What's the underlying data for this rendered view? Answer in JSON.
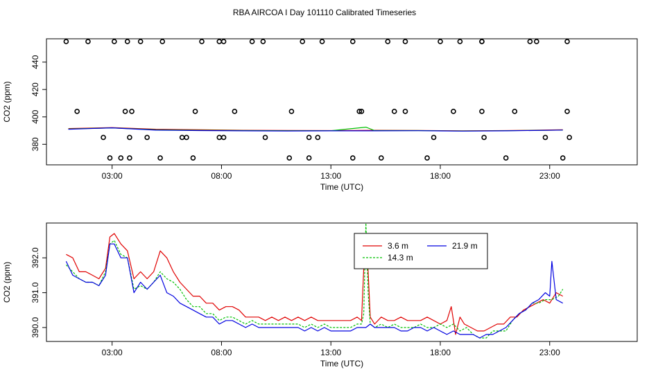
{
  "title": "RBA AIRCOA I  Day 101110  Calibrated Timeseries",
  "colors": {
    "red": "#e00000",
    "green": "#00c000",
    "blue": "#0000e0",
    "black": "#000000"
  },
  "chart_data": [
    {
      "type": "scatter",
      "xlabel": "Time (UTC)",
      "ylabel": "CO2 (ppm)",
      "x_unit": "hours UTC",
      "xlim": [
        0,
        27
      ],
      "ylim": [
        365,
        457
      ],
      "x_ticks": [
        {
          "v": 3,
          "label": "03:00"
        },
        {
          "v": 8,
          "label": "08:00"
        },
        {
          "v": 13,
          "label": "13:00"
        },
        {
          "v": 18,
          "label": "18:00"
        },
        {
          "v": 23,
          "label": "23:00"
        }
      ],
      "y_ticks": [
        {
          "v": 380,
          "label": "380"
        },
        {
          "v": 400,
          "label": "400"
        },
        {
          "v": 420,
          "label": "420"
        },
        {
          "v": 440,
          "label": "440"
        }
      ],
      "series": [
        {
          "color": "red",
          "x": [
            1,
            3,
            5,
            7,
            9,
            11,
            13,
            15,
            17,
            19,
            21,
            23.6
          ],
          "y": [
            391.5,
            392.2,
            391.0,
            390.6,
            390.2,
            390.1,
            390.0,
            390.2,
            390.1,
            389.8,
            390.0,
            390.6
          ]
        },
        {
          "color": "green",
          "x": [
            1,
            3,
            5,
            7,
            9,
            11,
            13,
            14.6,
            15,
            17,
            19,
            21,
            23.6
          ],
          "y": [
            391.2,
            392.0,
            390.6,
            390.2,
            390.0,
            389.9,
            389.9,
            392.5,
            390.0,
            390.0,
            389.7,
            389.9,
            390.4
          ]
        },
        {
          "color": "blue",
          "x": [
            1,
            3,
            5,
            7,
            9,
            11,
            13,
            15,
            17,
            19,
            21,
            23.6
          ],
          "y": [
            391.0,
            392.0,
            390.3,
            390.0,
            389.8,
            389.7,
            389.8,
            389.8,
            389.9,
            389.6,
            389.8,
            390.4
          ]
        }
      ],
      "points": {
        "x": [
          2.9,
          5.2,
          12.0,
          15.3,
          21.0,
          23.6,
          4.6,
          6.4,
          8.1,
          10.0,
          12.4,
          17.7,
          20.0,
          22.8,
          23.9,
          1.4,
          3.9,
          6.8,
          8.6,
          11.2,
          14.4,
          16.4,
          18.6,
          21.4,
          0.9,
          1.9,
          3.1,
          3.7,
          5.3,
          7.1,
          7.9,
          9.4,
          12.6,
          14.0,
          15.6,
          18.0,
          18.9,
          19.9,
          22.1,
          23.8,
          2.6,
          3.8,
          6.2,
          7.9,
          12.0,
          14.3,
          15.9,
          19.9,
          23.8,
          3.6,
          4.3,
          8.1,
          9.9,
          11.7,
          16.4,
          19.9,
          22.4,
          3.4,
          3.8,
          6.7,
          11.1,
          14.0,
          17.4
        ],
        "y": [
          370,
          370,
          370,
          370,
          370,
          370,
          385,
          385,
          385,
          385,
          385,
          385,
          385,
          385,
          385,
          404,
          404,
          404,
          404,
          404,
          404,
          404,
          404,
          404,
          455,
          455,
          455,
          455,
          455,
          455,
          455,
          455,
          455,
          455,
          455,
          455,
          455,
          455,
          455,
          455,
          385,
          385,
          385,
          385,
          385,
          404,
          404,
          404,
          404,
          404,
          455,
          455,
          455,
          455,
          455,
          455,
          455,
          370,
          370,
          370,
          370,
          370,
          370
        ]
      }
    },
    {
      "type": "line",
      "xlabel": "Time (UTC)",
      "ylabel": "CO2 (ppm)",
      "x_unit": "hours UTC",
      "xlim": [
        0,
        27
      ],
      "ylim": [
        389.6,
        393.0
      ],
      "x_ticks": [
        {
          "v": 3,
          "label": "03:00"
        },
        {
          "v": 8,
          "label": "08:00"
        },
        {
          "v": 13,
          "label": "13:00"
        },
        {
          "v": 18,
          "label": "18:00"
        },
        {
          "v": 23,
          "label": "23:00"
        }
      ],
      "y_ticks": [
        {
          "v": 390,
          "label": "390.0"
        },
        {
          "v": 391,
          "label": "391.0"
        },
        {
          "v": 392,
          "label": "392.0"
        }
      ],
      "legend": {
        "placement": "top-center",
        "entries": [
          {
            "name": "3.6 m",
            "color": "red",
            "style": "solid"
          },
          {
            "name": "21.9 m",
            "color": "blue",
            "style": "solid"
          },
          {
            "name": "14.3 m",
            "color": "green",
            "style": "dotted"
          }
        ]
      },
      "series": [
        {
          "name": "3.6 m",
          "color": "red",
          "dash": "",
          "x": [
            0.9,
            1.2,
            1.5,
            1.8,
            2.1,
            2.4,
            2.7,
            2.9,
            3.1,
            3.4,
            3.7,
            4.0,
            4.3,
            4.6,
            4.9,
            5.2,
            5.5,
            5.8,
            6.1,
            6.4,
            6.7,
            7.0,
            7.3,
            7.6,
            7.9,
            8.2,
            8.5,
            8.8,
            9.1,
            9.4,
            9.7,
            10.0,
            10.3,
            10.6,
            10.9,
            11.2,
            11.5,
            11.8,
            12.1,
            12.4,
            12.7,
            13.0,
            13.3,
            13.6,
            13.9,
            14.2,
            14.4,
            14.55,
            14.65,
            14.8,
            15.0,
            15.3,
            15.6,
            15.9,
            16.2,
            16.5,
            16.8,
            17.1,
            17.4,
            17.7,
            18.0,
            18.3,
            18.5,
            18.7,
            18.9,
            19.1,
            19.4,
            19.7,
            20.0,
            20.3,
            20.6,
            20.9,
            21.2,
            21.5,
            21.8,
            22.1,
            22.4,
            22.7,
            23.0,
            23.3,
            23.6
          ],
          "y": [
            392.1,
            392.0,
            391.6,
            391.6,
            391.5,
            391.4,
            391.7,
            392.6,
            392.7,
            392.4,
            392.2,
            391.4,
            391.6,
            391.4,
            391.6,
            392.2,
            392.0,
            391.6,
            391.3,
            391.1,
            390.9,
            390.9,
            390.7,
            390.7,
            390.5,
            390.6,
            390.6,
            390.5,
            390.3,
            390.3,
            390.3,
            390.2,
            390.3,
            390.2,
            390.3,
            390.2,
            390.3,
            390.2,
            390.3,
            390.2,
            390.2,
            390.2,
            390.2,
            390.2,
            390.2,
            390.3,
            390.2,
            392.4,
            392.3,
            390.3,
            390.1,
            390.3,
            390.2,
            390.2,
            390.3,
            390.2,
            390.2,
            390.2,
            390.3,
            390.2,
            390.1,
            390.2,
            390.6,
            389.8,
            390.3,
            390.1,
            390.0,
            389.9,
            389.9,
            390.0,
            390.1,
            390.1,
            390.3,
            390.3,
            390.5,
            390.6,
            390.7,
            390.8,
            390.7,
            391.0,
            390.9
          ]
        },
        {
          "name": "14.3 m",
          "color": "green",
          "dash": "3,2",
          "x": [
            0.9,
            1.2,
            1.5,
            1.8,
            2.1,
            2.4,
            2.7,
            2.9,
            3.1,
            3.4,
            3.7,
            4.0,
            4.3,
            4.6,
            4.9,
            5.2,
            5.5,
            5.8,
            6.1,
            6.4,
            6.7,
            7.0,
            7.3,
            7.6,
            7.9,
            8.2,
            8.5,
            8.8,
            9.1,
            9.4,
            9.7,
            10.0,
            10.3,
            10.6,
            10.9,
            11.2,
            11.5,
            11.8,
            12.1,
            12.4,
            12.7,
            13.0,
            13.3,
            13.6,
            13.9,
            14.2,
            14.4,
            14.5,
            14.6,
            14.7,
            14.8,
            15.0,
            15.3,
            15.6,
            15.9,
            16.2,
            16.5,
            16.8,
            17.1,
            17.4,
            17.7,
            18.0,
            18.3,
            18.6,
            18.9,
            19.2,
            19.5,
            19.8,
            20.1,
            20.4,
            20.7,
            21.0,
            21.3,
            21.6,
            21.9,
            22.2,
            22.5,
            22.8,
            23.1,
            23.4,
            23.6
          ],
          "y": [
            391.8,
            391.6,
            391.4,
            391.3,
            391.3,
            391.2,
            391.6,
            392.4,
            392.5,
            392.1,
            392.0,
            391.1,
            391.2,
            391.1,
            391.3,
            391.6,
            391.4,
            391.3,
            391.1,
            390.8,
            390.6,
            390.6,
            390.4,
            390.4,
            390.2,
            390.3,
            390.3,
            390.2,
            390.1,
            390.2,
            390.1,
            390.1,
            390.1,
            390.1,
            390.1,
            390.1,
            390.1,
            390.0,
            390.1,
            390.0,
            390.1,
            390.0,
            390.0,
            390.0,
            390.0,
            390.1,
            390.1,
            390.4,
            393.0,
            391.0,
            390.1,
            390.0,
            390.1,
            390.0,
            390.1,
            390.0,
            390.0,
            390.0,
            390.1,
            390.0,
            390.0,
            390.1,
            390.0,
            390.1,
            389.9,
            390.0,
            389.8,
            389.7,
            389.7,
            389.9,
            389.9,
            389.9,
            390.2,
            390.4,
            390.5,
            390.7,
            390.7,
            390.8,
            390.8,
            390.9,
            391.1
          ]
        },
        {
          "name": "21.9 m",
          "color": "blue",
          "dash": "",
          "x": [
            0.9,
            1.2,
            1.5,
            1.8,
            2.1,
            2.4,
            2.7,
            2.9,
            3.1,
            3.4,
            3.7,
            4.0,
            4.3,
            4.6,
            4.9,
            5.2,
            5.5,
            5.8,
            6.1,
            6.4,
            6.7,
            7.0,
            7.3,
            7.6,
            7.9,
            8.2,
            8.5,
            8.8,
            9.1,
            9.4,
            9.7,
            10.0,
            10.3,
            10.6,
            10.9,
            11.2,
            11.5,
            11.8,
            12.1,
            12.4,
            12.7,
            13.0,
            13.3,
            13.6,
            13.9,
            14.2,
            14.4,
            14.6,
            14.8,
            15.0,
            15.3,
            15.6,
            15.9,
            16.2,
            16.5,
            16.8,
            17.1,
            17.4,
            17.7,
            18.0,
            18.3,
            18.6,
            18.9,
            19.2,
            19.5,
            19.8,
            20.1,
            20.4,
            20.7,
            21.0,
            21.3,
            21.6,
            21.9,
            22.2,
            22.5,
            22.8,
            23.0,
            23.1,
            23.3,
            23.6
          ],
          "y": [
            391.9,
            391.5,
            391.4,
            391.3,
            391.3,
            391.2,
            391.5,
            392.4,
            392.4,
            392.0,
            392.0,
            391.0,
            391.3,
            391.1,
            391.3,
            391.5,
            391.0,
            390.9,
            390.7,
            390.6,
            390.5,
            390.4,
            390.3,
            390.3,
            390.1,
            390.2,
            390.2,
            390.1,
            390.0,
            390.1,
            390.0,
            390.0,
            390.0,
            390.0,
            390.0,
            390.0,
            390.0,
            389.9,
            390.0,
            389.9,
            390.0,
            389.9,
            389.9,
            389.9,
            389.9,
            390.0,
            390.0,
            390.0,
            390.1,
            390.0,
            390.0,
            390.0,
            390.0,
            389.9,
            389.9,
            390.0,
            390.0,
            389.9,
            390.0,
            389.9,
            389.8,
            389.9,
            389.8,
            389.8,
            389.8,
            389.7,
            389.8,
            389.8,
            389.9,
            390.0,
            390.2,
            390.4,
            390.5,
            390.7,
            390.8,
            391.0,
            390.9,
            391.9,
            390.8,
            390.7
          ]
        }
      ]
    }
  ]
}
